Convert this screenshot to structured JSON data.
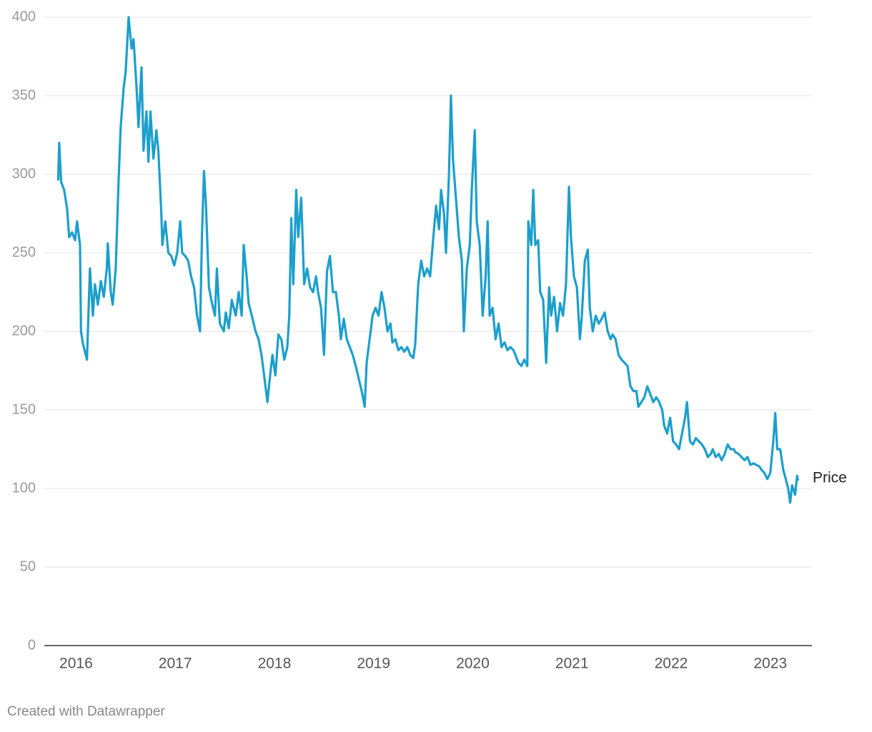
{
  "chart_data": {
    "type": "line",
    "xlim": [
      2015.68,
      2023.42
    ],
    "xticks": [
      2016,
      2017,
      2018,
      2019,
      2020,
      2021,
      2022,
      2023
    ],
    "ylim": [
      0,
      400
    ],
    "yticks": [
      0,
      50,
      100,
      150,
      200,
      250,
      300,
      350,
      400
    ],
    "grid": true,
    "credit": "Created with Datawrapper",
    "x": [
      2015.82,
      2015.83,
      2015.85,
      2015.88,
      2015.91,
      2015.93,
      2015.96,
      2015.99,
      2016.01,
      2016.04,
      2016.05,
      2016.07,
      2016.11,
      2016.14,
      2016.17,
      2016.19,
      2016.22,
      2016.25,
      2016.28,
      2016.31,
      2016.32,
      2016.35,
      2016.37,
      2016.4,
      2016.43,
      2016.45,
      2016.48,
      2016.5,
      2016.53,
      2016.56,
      2016.58,
      2016.61,
      2016.63,
      2016.66,
      2016.68,
      2016.71,
      2016.73,
      2016.75,
      2016.78,
      2016.81,
      2016.83,
      2016.86,
      2016.87,
      2016.9,
      2016.93,
      2016.96,
      2016.99,
      2017.02,
      2017.05,
      2017.07,
      2017.1,
      2017.13,
      2017.16,
      2017.19,
      2017.22,
      2017.25,
      2017.27,
      2017.29,
      2017.31,
      2017.34,
      2017.37,
      2017.4,
      2017.42,
      2017.45,
      2017.49,
      2017.51,
      2017.54,
      2017.57,
      2017.61,
      2017.64,
      2017.67,
      2017.69,
      2017.72,
      2017.74,
      2017.78,
      2017.81,
      2017.84,
      2017.87,
      2017.9,
      2017.93,
      2017.95,
      2017.98,
      2018.01,
      2018.04,
      2018.07,
      2018.1,
      2018.13,
      2018.15,
      2018.17,
      2018.19,
      2018.22,
      2018.24,
      2018.27,
      2018.3,
      2018.33,
      2018.36,
      2018.39,
      2018.42,
      2018.44,
      2018.47,
      2018.5,
      2018.53,
      2018.56,
      2018.59,
      2018.62,
      2018.65,
      2018.67,
      2018.7,
      2018.73,
      2018.76,
      2018.79,
      2018.82,
      2018.85,
      2018.88,
      2018.91,
      2018.93,
      2018.96,
      2018.99,
      2019.02,
      2019.05,
      2019.08,
      2019.11,
      2019.14,
      2019.17,
      2019.19,
      2019.22,
      2019.25,
      2019.28,
      2019.31,
      2019.34,
      2019.37,
      2019.4,
      2019.42,
      2019.45,
      2019.48,
      2019.51,
      2019.54,
      2019.57,
      2019.6,
      2019.63,
      2019.66,
      2019.68,
      2019.71,
      2019.73,
      2019.76,
      2019.78,
      2019.8,
      2019.83,
      2019.86,
      2019.89,
      2019.91,
      2019.94,
      2019.97,
      2019.99,
      2020.02,
      2020.04,
      2020.07,
      2020.1,
      2020.13,
      2020.15,
      2020.17,
      2020.2,
      2020.23,
      2020.26,
      2020.29,
      2020.32,
      2020.35,
      2020.38,
      2020.41,
      2020.43,
      2020.46,
      2020.49,
      2020.52,
      2020.55,
      2020.56,
      2020.59,
      2020.61,
      2020.63,
      2020.66,
      2020.68,
      2020.71,
      2020.74,
      2020.77,
      2020.79,
      2020.82,
      2020.85,
      2020.88,
      2020.91,
      2020.94,
      2020.97,
      2020.99,
      2021.02,
      2021.05,
      2021.08,
      2021.1,
      2021.13,
      2021.16,
      2021.18,
      2021.21,
      2021.24,
      2021.27,
      2021.3,
      2021.33,
      2021.36,
      2021.39,
      2021.41,
      2021.44,
      2021.47,
      2021.5,
      2021.53,
      2021.56,
      2021.59,
      2021.62,
      2021.65,
      2021.67,
      2021.7,
      2021.73,
      2021.76,
      2021.79,
      2021.82,
      2021.85,
      2021.88,
      2021.91,
      2021.93,
      2021.96,
      2021.99,
      2022.02,
      2022.05,
      2022.08,
      2022.11,
      2022.14,
      2022.16,
      2022.19,
      2022.22,
      2022.25,
      2022.28,
      2022.31,
      2022.34,
      2022.37,
      2022.4,
      2022.42,
      2022.45,
      2022.48,
      2022.51,
      2022.54,
      2022.57,
      2022.6,
      2022.63,
      2022.65,
      2022.68,
      2022.71,
      2022.74,
      2022.77,
      2022.8,
      2022.83,
      2022.86,
      2022.89,
      2022.91,
      2022.94,
      2022.97,
      2023.0,
      2023.03,
      2023.05,
      2023.07,
      2023.1,
      2023.13,
      2023.16,
      2023.18,
      2023.2,
      2023.22,
      2023.25,
      2023.27,
      2023.28
    ],
    "series": [
      {
        "name": "Price",
        "color": "#1c9fcc",
        "values": [
          296,
          320,
          295,
          290,
          278,
          260,
          263,
          258,
          270,
          255,
          200,
          192,
          182,
          240,
          210,
          230,
          217,
          232,
          222,
          240,
          256,
          225,
          217,
          240,
          298,
          330,
          355,
          365,
          400,
          380,
          386,
          355,
          330,
          368,
          315,
          340,
          308,
          340,
          310,
          328,
          315,
          275,
          255,
          270,
          250,
          248,
          242,
          250,
          270,
          250,
          248,
          245,
          235,
          228,
          210,
          200,
          262,
          302,
          280,
          228,
          218,
          210,
          240,
          205,
          200,
          212,
          202,
          220,
          210,
          225,
          210,
          255,
          235,
          218,
          208,
          200,
          195,
          185,
          170,
          155,
          168,
          185,
          172,
          198,
          195,
          182,
          190,
          210,
          272,
          230,
          290,
          260,
          285,
          230,
          240,
          228,
          225,
          235,
          225,
          215,
          185,
          238,
          248,
          225,
          225,
          210,
          195,
          208,
          195,
          190,
          185,
          178,
          170,
          162,
          152,
          180,
          195,
          210,
          215,
          210,
          225,
          215,
          200,
          205,
          193,
          195,
          188,
          190,
          187,
          190,
          185,
          183,
          192,
          230,
          245,
          235,
          240,
          235,
          258,
          280,
          265,
          290,
          275,
          250,
          300,
          350,
          310,
          285,
          260,
          245,
          200,
          240,
          255,
          290,
          328,
          270,
          255,
          210,
          235,
          270,
          210,
          215,
          195,
          205,
          190,
          193,
          188,
          190,
          188,
          185,
          180,
          178,
          182,
          178,
          270,
          255,
          290,
          255,
          258,
          225,
          220,
          180,
          228,
          210,
          222,
          200,
          218,
          210,
          230,
          292,
          260,
          235,
          228,
          195,
          210,
          245,
          252,
          215,
          200,
          210,
          205,
          208,
          212,
          200,
          195,
          198,
          195,
          185,
          182,
          180,
          178,
          165,
          162,
          162,
          152,
          155,
          158,
          165,
          160,
          155,
          158,
          155,
          150,
          140,
          135,
          145,
          130,
          128,
          125,
          135,
          145,
          155,
          130,
          128,
          132,
          130,
          128,
          125,
          120,
          122,
          125,
          120,
          122,
          118,
          122,
          128,
          125,
          125,
          123,
          122,
          120,
          118,
          120,
          115,
          116,
          115,
          114,
          112,
          110,
          106,
          110,
          130,
          148,
          125,
          125,
          112,
          105,
          100,
          91,
          102,
          96,
          108,
          105
        ]
      }
    ]
  }
}
